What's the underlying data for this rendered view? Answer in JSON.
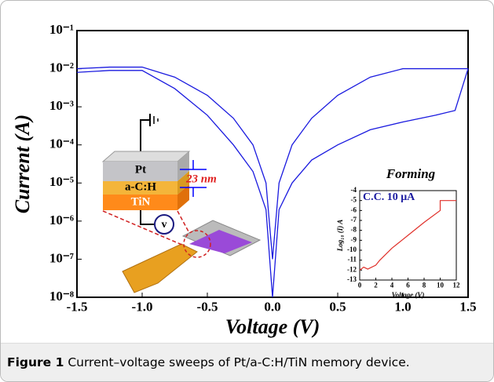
{
  "chart_data": [
    {
      "type": "line",
      "xlabel": "Voltage (V)",
      "ylabel": "Current (A)",
      "log_y": true,
      "x": [
        -1.5,
        -1.25,
        -1.0,
        -0.75,
        -0.5,
        -0.3,
        -0.15,
        -0.05,
        0,
        0.05,
        0.15,
        0.3,
        0.5,
        0.75,
        1.0,
        1.25,
        1.4,
        1.5
      ],
      "series": [
        {
          "color": "#1a1adf",
          "values": [
            0.01,
            0.011,
            0.011,
            0.006,
            0.002,
            0.0005,
            0.0001,
            1e-05,
            1e-07,
            1e-05,
            0.0001,
            0.0005,
            0.002,
            0.006,
            0.01,
            0.01,
            0.01,
            0.01
          ]
        },
        {
          "color": "#1a1adf",
          "values": [
            0.008,
            0.009,
            0.009,
            0.003,
            0.0006,
            0.0001,
            2e-05,
            2e-06,
            1e-08,
            2e-06,
            1e-05,
            4e-05,
            0.0001,
            0.00025,
            0.0004,
            0.0006,
            0.0008,
            0.01
          ]
        }
      ],
      "xlim": [
        -1.5,
        1.5
      ],
      "ylim": [
        1e-08,
        0.1
      ],
      "xticks": [
        -1.5,
        {
          "value": -1,
          "label": "-1.0"
        },
        -0.5,
        {
          "value": 0,
          "label": "0.0"
        },
        0.5,
        {
          "value": 1,
          "label": "1.0"
        },
        1.5
      ],
      "yticks": [
        {
          "value": 1e-08,
          "label": "10⁻⁸"
        },
        {
          "value": 1e-07,
          "label": "10⁻⁷"
        },
        {
          "value": 1e-06,
          "label": "10⁻⁶"
        },
        {
          "value": 1e-05,
          "label": "10⁻⁵"
        },
        {
          "value": 0.0001,
          "label": "10⁻⁴"
        },
        {
          "value": 0.001,
          "label": "10⁻³"
        },
        {
          "value": 0.01,
          "label": "10⁻²"
        },
        {
          "value": 0.1,
          "label": "10⁻¹"
        }
      ]
    },
    {
      "type": "line",
      "title": "Forming",
      "annotation": "C.C. 10 μA",
      "xlabel": "Voltage (V)",
      "ylabel": "Log₁₀ (I) A",
      "x": [
        0,
        0.5,
        1,
        2,
        2.5,
        4,
        6,
        8,
        10,
        10,
        12
      ],
      "series": [
        {
          "color": "#e0302a",
          "values": [
            -12,
            -11.7,
            -11.9,
            -11.5,
            -11,
            -9.8,
            -8.5,
            -7.2,
            -6,
            -5,
            -5
          ]
        }
      ],
      "xlim": [
        0,
        12
      ],
      "ylim": [
        -13,
        -4
      ],
      "xticks": [
        0,
        2,
        4,
        6,
        8,
        10,
        12
      ],
      "yticks": [
        -13,
        -12,
        -11,
        -10,
        -9,
        -8,
        -7,
        -6,
        -5,
        -4
      ]
    }
  ],
  "diagram": {
    "top": "Pt",
    "middle": "a-C:H",
    "bottom": "TiN",
    "thickness": "23 nm",
    "meter": "v"
  },
  "caption": {
    "label": "Figure 1",
    "text": "Current–voltage sweeps of Pt/a-C:H/TiN memory device."
  }
}
